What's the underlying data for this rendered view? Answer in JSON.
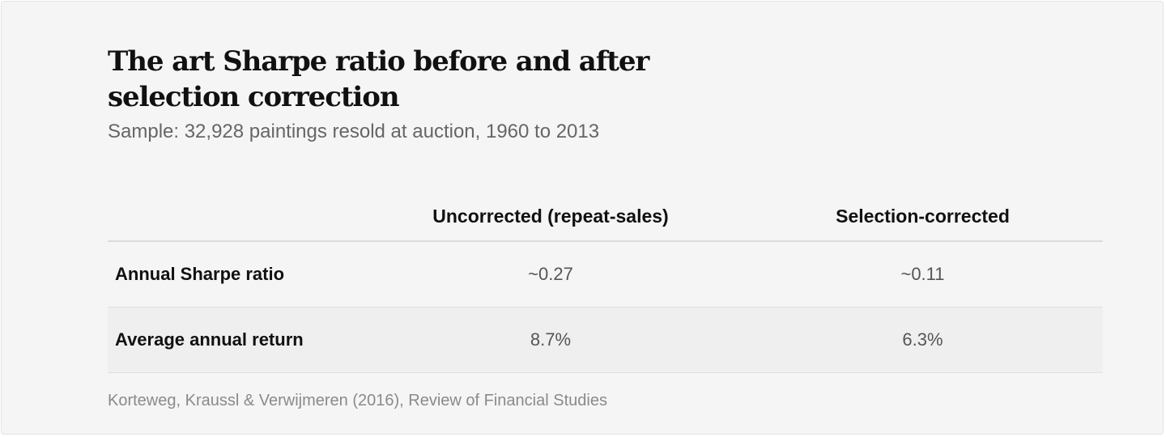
{
  "title": "The art Sharpe ratio before and after selection correction",
  "subtitle": "Sample: 32,928 paintings resold at auction, 1960 to 2013",
  "chart_data": {
    "type": "table",
    "columns": [
      "",
      "Uncorrected (repeat-sales)",
      "Selection-corrected"
    ],
    "rows": [
      {
        "label": "Annual Sharpe ratio",
        "values": [
          "~0.27",
          "~0.11"
        ]
      },
      {
        "label": "Average annual return",
        "values": [
          "8.7%",
          "6.3%"
        ]
      }
    ]
  },
  "source": "Korteweg, Kraussl & Verwijmeren (2016), Review of Financial Studies"
}
